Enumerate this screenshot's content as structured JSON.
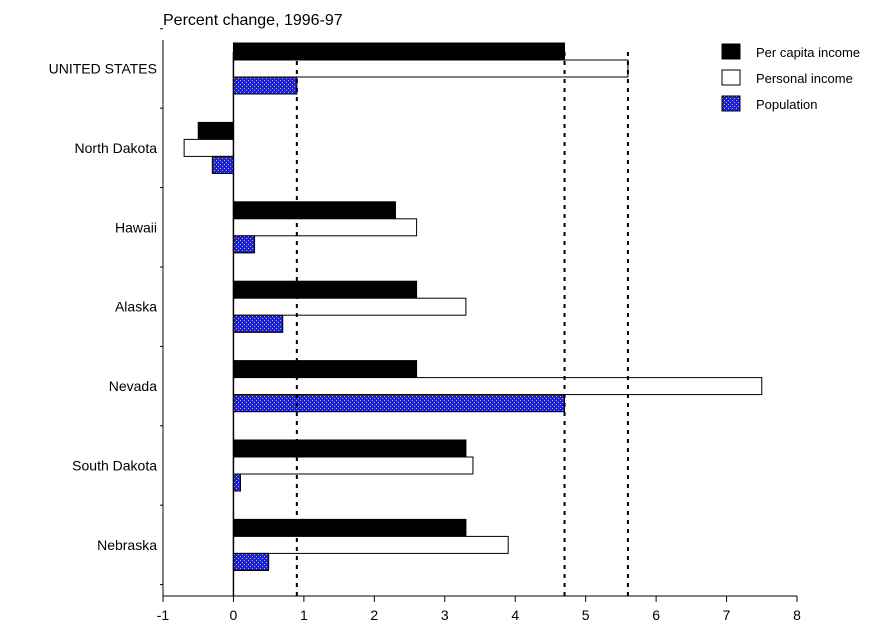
{
  "chart_data": {
    "type": "bar",
    "orientation": "horizontal",
    "title": "Percent change, 1996-97",
    "categories": [
      "UNITED STATES",
      "North Dakota",
      "Hawaii",
      "Alaska",
      "Nevada",
      "South Dakota",
      "Nebraska"
    ],
    "series": [
      {
        "name": "Per capita income",
        "values": [
          4.7,
          -0.5,
          2.3,
          2.6,
          2.6,
          3.3,
          3.3
        ],
        "color": "#000000",
        "pattern": "solid"
      },
      {
        "name": "Personal income",
        "values": [
          5.6,
          -0.7,
          2.6,
          3.3,
          7.5,
          3.4,
          3.9
        ],
        "color": "#ffffff",
        "pattern": "outline"
      },
      {
        "name": "Population",
        "values": [
          0.9,
          -0.3,
          0.3,
          0.7,
          4.7,
          0.1,
          0.5
        ],
        "color": "#1a1aff",
        "pattern": "stipple"
      }
    ],
    "xlim": [
      -1,
      8
    ],
    "xticks": [
      "-1",
      "0",
      "1",
      "2",
      "3",
      "4",
      "5",
      "6",
      "7",
      "8"
    ],
    "reference_lines": [
      {
        "value": 0.9,
        "style": "dotted"
      },
      {
        "value": 4.7,
        "style": "dotted"
      },
      {
        "value": 5.6,
        "style": "dotted"
      }
    ],
    "grid": false,
    "legend_position": "top-right",
    "xlabel": "",
    "ylabel": ""
  }
}
